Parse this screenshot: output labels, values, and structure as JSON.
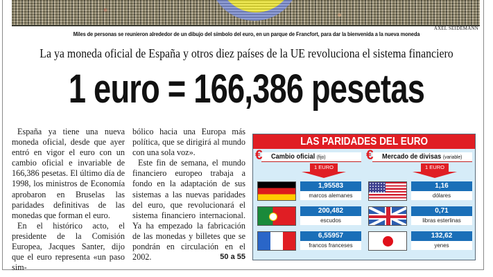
{
  "photo": {
    "credit": "AXEL SEIDEMANN",
    "caption": "Miles de personas se reunieron alrededor de un dibujo del símbolo del euro, en un parque de Francfort, para dar la bienvenida a la nueva moneda"
  },
  "article": {
    "subtitle": "La ya moneda oficial de España y otros diez países de la UE revoluciona el sistema financiero",
    "headline": "1 euro = 166,386 pesetas",
    "column1": [
      "España ya tiene una nueva moneda oficial, desde que ayer entró en vigor el euro con un cambio oficial e invariable de 166,386 pesetas. El último día de 1998, los ministros de Economía aprobaron en Bruselas las paridades definitivas de las monedas que forman el euro.",
      "En el histórico acto, el presidente de la Comisión Europea, Jacques Santer, dijo que el euro representa «un paso sim-"
    ],
    "column2": [
      "bólico hacia una Europa más política, que se dirigirá al mundo con una sola voz».",
      "Este fin de semana, el mundo financiero europeo trabaja a fondo en la adaptación de sus sistemas a las nuevas paridades del euro, que revolucionará el sistema financiero internacional. Ya ha empezado la fabricación de las monedas y billetes que se pondrán en circulación en el 2002."
    ],
    "page_ref": "50 a 55"
  },
  "infographic": {
    "title": "LAS PARIDADES DEL EURO",
    "colors": {
      "red": "#e01e24",
      "blue": "#1a6fb8",
      "background": "#d6ecf8"
    },
    "left": {
      "heading": "Cambio oficial",
      "qualifier": "(fijo)",
      "arrow_label": "1 EURO",
      "rows": [
        {
          "flag": "germany-flag",
          "value": "1,95583",
          "unit": "marcos alemanes"
        },
        {
          "flag": "portugal-flag",
          "value": "200,482",
          "unit": "escudos"
        },
        {
          "flag": "france-flag",
          "value": "6,55957",
          "unit": "francos franceses"
        }
      ]
    },
    "right": {
      "heading": "Mercado de divisas",
      "qualifier": "(variable)",
      "arrow_label": "1 EURO",
      "rows": [
        {
          "flag": "usa-flag",
          "value": "1,16",
          "unit": "dólares"
        },
        {
          "flag": "uk-flag",
          "value": "0,71",
          "unit": "libras esterlinas"
        },
        {
          "flag": "japan-flag",
          "value": "132,62",
          "unit": "yenes"
        }
      ]
    },
    "euro_symbol": "€"
  }
}
